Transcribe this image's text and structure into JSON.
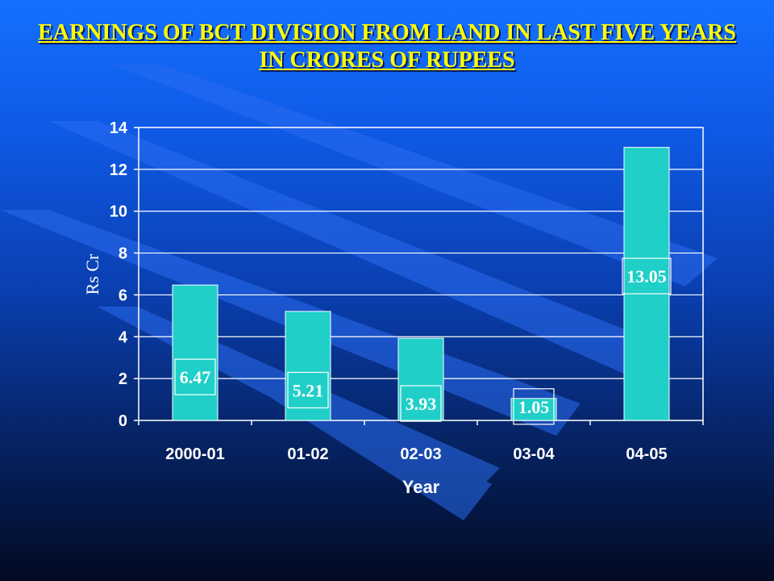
{
  "title": "EARNINGS OF BCT DIVISION FROM LAND IN LAST FIVE YEARS IN CRORES OF RUPEES",
  "colors": {
    "bar": "#1fcfc8",
    "title": "#ffff00"
  },
  "chart_data": {
    "type": "bar",
    "title": "EARNINGS OF BCT DIVISION FROM LAND IN LAST FIVE YEARS IN CRORES OF RUPEES",
    "categories": [
      "2000-01",
      "01-02",
      "02-03",
      "03-04",
      "04-05"
    ],
    "values": [
      6.47,
      5.21,
      3.93,
      1.05,
      13.05
    ],
    "data_labels": [
      "6.47",
      "5.21",
      "3.93",
      "1.05",
      "13.05"
    ],
    "xlabel": "Year",
    "ylabel": "Rs Cr",
    "ylim": [
      0,
      14
    ],
    "yticks": [
      0,
      2,
      4,
      6,
      8,
      10,
      12,
      14
    ],
    "grid": true,
    "legend": "none"
  }
}
